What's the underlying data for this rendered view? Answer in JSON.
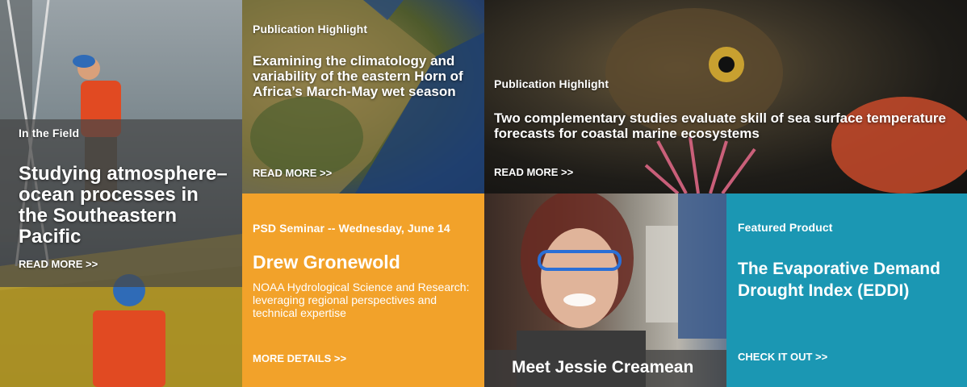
{
  "tiles": {
    "field": {
      "kicker": "In the Field",
      "headline": "Studying atmosphere–ocean processes in the Southeastern Pacific",
      "more": "READ MORE >>"
    },
    "africa": {
      "kicker": "Publication Highlight",
      "headline": "Examining the climatology and variability of the eastern Horn of Africa’s March-May wet season",
      "more": "READ MORE >>"
    },
    "fish": {
      "kicker": "Publication Highlight",
      "headline": "Two complementary studies evaluate skill of sea surface temperature forecasts for coastal marine ecosystems",
      "more": "READ MORE >>"
    },
    "seminar": {
      "kicker": "PSD Seminar -- Wednesday, June 14",
      "name": "Drew Gronewold",
      "desc": "NOAA Hydrological Science and Research: leveraging regional perspectives and technical expertise",
      "more": "MORE DETAILS >>"
    },
    "person": {
      "caption": "Meet Jessie Creamean"
    },
    "eddi": {
      "kicker": "Featured Product",
      "headline": "The Evaporative Demand Drought Index (EDDI)",
      "more": "CHECK IT OUT >>"
    }
  },
  "colors": {
    "seminar_bg": "#f2a22a",
    "eddi_bg": "#1b97b3"
  }
}
